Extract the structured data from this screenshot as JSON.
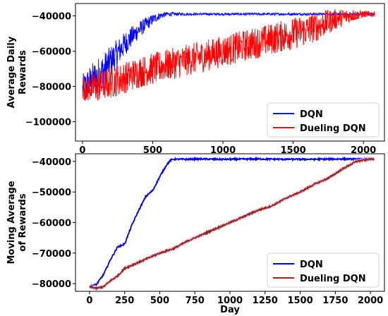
{
  "chart_data": [
    {
      "type": "line",
      "title": "",
      "xlabel": "",
      "ylabel_lines": [
        "Average Daily",
        "Rewards"
      ],
      "xlim": [
        -50,
        2150
      ],
      "ylim": [
        -111000,
        -33000
      ],
      "xticks": [
        0,
        500,
        1000,
        1500,
        2000
      ],
      "xtick_labels": [
        "0",
        "500",
        "1000",
        "1500",
        "2000"
      ],
      "yticks": [
        -100000,
        -80000,
        -60000,
        -40000
      ],
      "ytick_labels": [
        "−100000",
        "−80000",
        "−60000",
        "−40000"
      ],
      "grid": false,
      "legend_position": "lower-right",
      "series": [
        {
          "name": "DQN",
          "color": "#0000ff",
          "points_x": [
            0,
            50,
            100,
            150,
            200,
            250,
            300,
            350,
            400,
            450,
            500,
            550,
            600,
            700,
            800,
            900,
            1000,
            1200,
            1400,
            1600,
            1800,
            2000,
            2080
          ],
          "points_y": [
            -82000,
            -79000,
            -75000,
            -71000,
            -66000,
            -61000,
            -56000,
            -52000,
            -48000,
            -45000,
            -42000,
            -40000,
            -39000,
            -39000,
            -39000,
            -39000,
            -39000,
            -39000,
            -39000,
            -39000,
            -39000,
            -39000,
            -39000
          ],
          "noise": [
            9000,
            11000,
            11000,
            10000,
            9000,
            8000,
            7000,
            6000,
            5000,
            4000,
            3000,
            2000,
            1200,
            800,
            700,
            700,
            700,
            700,
            700,
            700,
            700,
            700,
            700
          ]
        },
        {
          "name": "Dueling DQN",
          "color": "#ff0000",
          "points_x": [
            0,
            100,
            200,
            300,
            400,
            500,
            600,
            700,
            800,
            900,
            1000,
            1100,
            1200,
            1300,
            1400,
            1500,
            1600,
            1700,
            1800,
            1900,
            2000,
            2080
          ],
          "points_y": [
            -81000,
            -80000,
            -78000,
            -75000,
            -72000,
            -70000,
            -68000,
            -66000,
            -64000,
            -62000,
            -60000,
            -58000,
            -56000,
            -54000,
            -52000,
            -50000,
            -48000,
            -45000,
            -42000,
            -40000,
            -39000,
            -39000
          ],
          "noise": [
            7000,
            9000,
            9000,
            9000,
            9000,
            9000,
            9000,
            9000,
            9000,
            9000,
            9000,
            9000,
            9000,
            9000,
            9000,
            9000,
            9000,
            8000,
            6000,
            4000,
            2000,
            1500
          ]
        }
      ]
    },
    {
      "type": "line",
      "title": "",
      "xlabel": "Day",
      "ylabel_lines": [
        "Moving Average",
        "of Rewards"
      ],
      "xlim": [
        -100,
        2100
      ],
      "ylim": [
        -82500,
        -37500
      ],
      "xticks": [
        0,
        250,
        500,
        750,
        1000,
        1250,
        1500,
        1750,
        2000
      ],
      "xtick_labels": [
        "0",
        "250",
        "500",
        "750",
        "1000",
        "1250",
        "1500",
        "1750",
        "2000"
      ],
      "yticks": [
        -80000,
        -70000,
        -60000,
        -50000,
        -40000
      ],
      "ytick_labels": [
        "−80000",
        "−70000",
        "−60000",
        "−50000",
        "−40000"
      ],
      "grid": false,
      "legend_position": "lower-right",
      "series": [
        {
          "name": "DQN",
          "color": "#0000dd",
          "points_x": [
            0,
            50,
            100,
            150,
            200,
            250,
            300,
            350,
            400,
            450,
            500,
            550,
            580,
            600,
            700,
            800,
            900,
            1000,
            1200,
            1400,
            1600,
            1800,
            2000,
            2025
          ],
          "points_y": [
            -81000,
            -80200,
            -77000,
            -72000,
            -68000,
            -67000,
            -61000,
            -56000,
            -51500,
            -49500,
            -45000,
            -41000,
            -39500,
            -39300,
            -39300,
            -39200,
            -39300,
            -39300,
            -39200,
            -39300,
            -39300,
            -39200,
            -39300,
            -39400
          ]
        },
        {
          "name": "Dueling DQN",
          "color": "#8b2f1a",
          "band_color": "#f5b8f0",
          "points_x": [
            0,
            50,
            100,
            150,
            200,
            250,
            300,
            400,
            500,
            600,
            700,
            800,
            900,
            1000,
            1100,
            1200,
            1300,
            1400,
            1500,
            1600,
            1700,
            1800,
            1900,
            2000,
            2025
          ],
          "points_y": [
            -81000,
            -81500,
            -81000,
            -79000,
            -77500,
            -75000,
            -74000,
            -72000,
            -70000,
            -68500,
            -66000,
            -64000,
            -62000,
            -60000,
            -58000,
            -56000,
            -54500,
            -52000,
            -50000,
            -47500,
            -45500,
            -42500,
            -40000,
            -39200,
            -39300
          ]
        }
      ]
    }
  ]
}
